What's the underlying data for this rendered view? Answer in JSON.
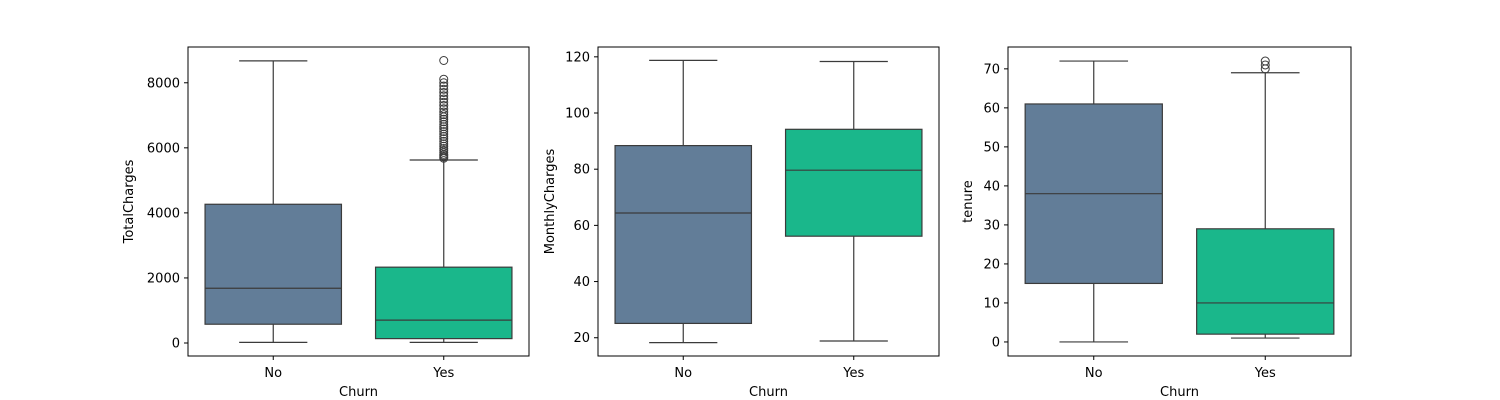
{
  "chart_data": [
    {
      "type": "box",
      "xlabel": "Churn",
      "ylabel": "TotalCharges",
      "categories": [
        "No",
        "Yes"
      ],
      "ylim": [
        -400,
        9100
      ],
      "yticks": [
        0,
        2000,
        4000,
        6000,
        8000
      ],
      "ytick_labels": [
        "0",
        "2000",
        "4000",
        "6000",
        "8000"
      ],
      "boxes": [
        {
          "category": "No",
          "whisker_low": 18.8,
          "q1": 577,
          "median": 1683,
          "q3": 4265,
          "whisker_high": 8672.5,
          "outliers": [],
          "color": "#627d98"
        },
        {
          "category": "Yes",
          "whisker_low": 18.9,
          "q1": 134.5,
          "median": 703,
          "q3": 2331,
          "whisker_high": 5625,
          "outliers": [
            5680,
            5720,
            5760,
            5800,
            5860,
            5920,
            5980,
            6050,
            6120,
            6200,
            6280,
            6350,
            6420,
            6500,
            6580,
            6650,
            6720,
            6800,
            6880,
            6950,
            7020,
            7100,
            7200,
            7300,
            7400,
            7500,
            7600,
            7700,
            7800,
            7900,
            8000,
            8110,
            8684.8
          ],
          "color": "#1ab78b"
        }
      ]
    },
    {
      "type": "box",
      "xlabel": "Churn",
      "ylabel": "MonthlyCharges",
      "categories": [
        "No",
        "Yes"
      ],
      "ylim": [
        13.5,
        123.5
      ],
      "yticks": [
        20,
        40,
        60,
        80,
        100,
        120
      ],
      "ytick_labels": [
        "20",
        "40",
        "60",
        "80",
        "100",
        "120"
      ],
      "boxes": [
        {
          "category": "No",
          "whisker_low": 18.25,
          "q1": 25.1,
          "median": 64.4,
          "q3": 88.4,
          "whisker_high": 118.75,
          "outliers": [],
          "color": "#627d98"
        },
        {
          "category": "Yes",
          "whisker_low": 18.85,
          "q1": 56.15,
          "median": 79.65,
          "q3": 94.2,
          "whisker_high": 118.35,
          "outliers": [],
          "color": "#1ab78b"
        }
      ]
    },
    {
      "type": "box",
      "xlabel": "Churn",
      "ylabel": "tenure",
      "categories": [
        "No",
        "Yes"
      ],
      "ylim": [
        -3.6,
        75.6
      ],
      "yticks": [
        0,
        10,
        20,
        30,
        40,
        50,
        60,
        70
      ],
      "ytick_labels": [
        "0",
        "10",
        "20",
        "30",
        "40",
        "50",
        "60",
        "70"
      ],
      "boxes": [
        {
          "category": "No",
          "whisker_low": 0,
          "q1": 15,
          "median": 38,
          "q3": 61,
          "whisker_high": 72,
          "outliers": [],
          "color": "#627d98"
        },
        {
          "category": "Yes",
          "whisker_low": 1,
          "q1": 2,
          "median": 10,
          "q3": 29,
          "whisker_high": 69,
          "outliers": [
            70,
            71,
            72
          ],
          "color": "#1ab78b"
        }
      ]
    }
  ]
}
